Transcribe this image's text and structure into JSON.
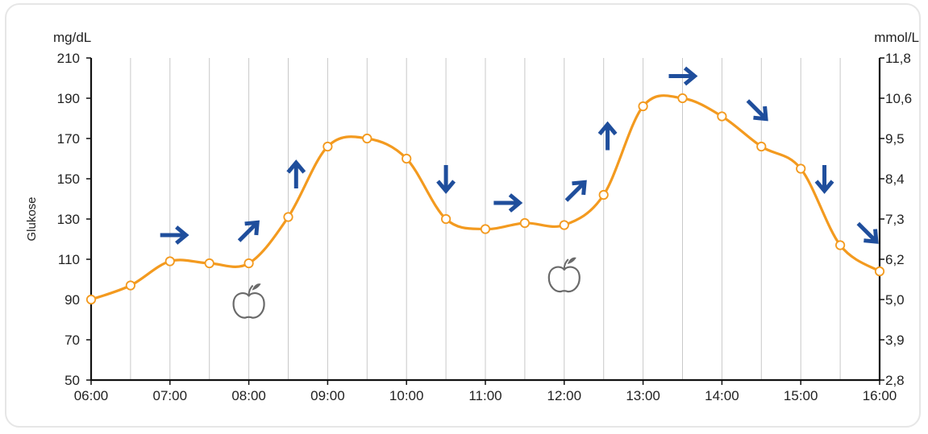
{
  "colors": {
    "curve": "#f39a1f",
    "arrow": "#1f4e9c",
    "axis": "#111111",
    "grid": "#c8c8c8",
    "apple": "#6a6a6a"
  },
  "chart_data": {
    "type": "line",
    "title": "",
    "ylabel": "Glukose",
    "y_unit_left": "mg/dL",
    "y_unit_right": "mmol/L",
    "ylim": [
      50,
      210
    ],
    "x_tick_labels": [
      "06:00",
      "07:00",
      "08:00",
      "09:00",
      "10:00",
      "11:00",
      "12:00",
      "13:00",
      "14:00",
      "15:00",
      "16:00"
    ],
    "y_ticks_left": [
      "50",
      "70",
      "90",
      "110",
      "130",
      "150",
      "170",
      "190",
      "210"
    ],
    "y_ticks_right": [
      "2,8",
      "3,9",
      "5,0",
      "6,2",
      "7,3",
      "8,4",
      "9,5",
      "10,6",
      "11,8"
    ],
    "grid": "vertical",
    "series": [
      {
        "x": [
          6.0,
          6.5,
          7.0,
          7.5,
          8.0,
          8.5,
          9.0,
          9.5,
          10.0,
          10.5,
          11.0,
          11.5,
          12.0,
          12.5,
          13.0,
          13.5,
          14.0,
          14.5,
          15.0,
          15.5,
          16.0
        ],
        "y": [
          90,
          97,
          109,
          108,
          108,
          131,
          166,
          170,
          160,
          130,
          125,
          128,
          127,
          142,
          186,
          190,
          181,
          166,
          155,
          117,
          104
        ]
      }
    ],
    "trend_arrows": [
      {
        "x": 7.05,
        "y": 122,
        "direction": "right"
      },
      {
        "x": 8.0,
        "y": 124,
        "direction": "up-right"
      },
      {
        "x": 8.6,
        "y": 152,
        "direction": "up"
      },
      {
        "x": 10.5,
        "y": 150,
        "direction": "down"
      },
      {
        "x": 11.28,
        "y": 138,
        "direction": "right"
      },
      {
        "x": 12.15,
        "y": 144,
        "direction": "up-right"
      },
      {
        "x": 12.55,
        "y": 171,
        "direction": "up"
      },
      {
        "x": 13.5,
        "y": 201,
        "direction": "right"
      },
      {
        "x": 14.45,
        "y": 184,
        "direction": "down-right"
      },
      {
        "x": 15.3,
        "y": 150,
        "direction": "down"
      },
      {
        "x": 15.85,
        "y": 123,
        "direction": "down-right"
      }
    ],
    "meal_markers": [
      {
        "x": 8.0,
        "y": 89,
        "icon": "apple-icon"
      },
      {
        "x": 12.0,
        "y": 102,
        "icon": "apple-icon"
      }
    ]
  }
}
